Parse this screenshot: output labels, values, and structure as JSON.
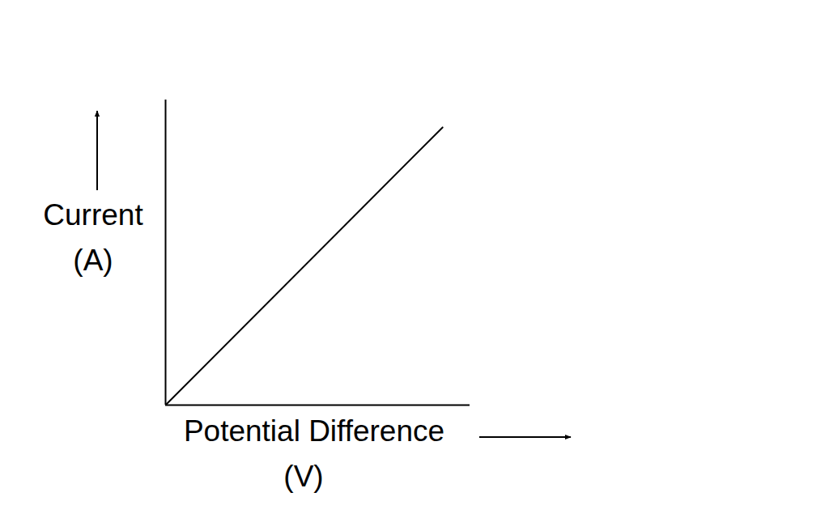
{
  "chart_data": {
    "type": "line",
    "x_label": "Potential Difference (V)",
    "y_label": "Current (A)",
    "x": [
      0,
      9.1
    ],
    "values": [
      0,
      9.1
    ],
    "xlim": [
      0,
      10
    ],
    "ylim": [
      0,
      10
    ],
    "xticks": [],
    "yticks": [],
    "tick_labels": false,
    "grid": false,
    "color": "#000000"
  }
}
